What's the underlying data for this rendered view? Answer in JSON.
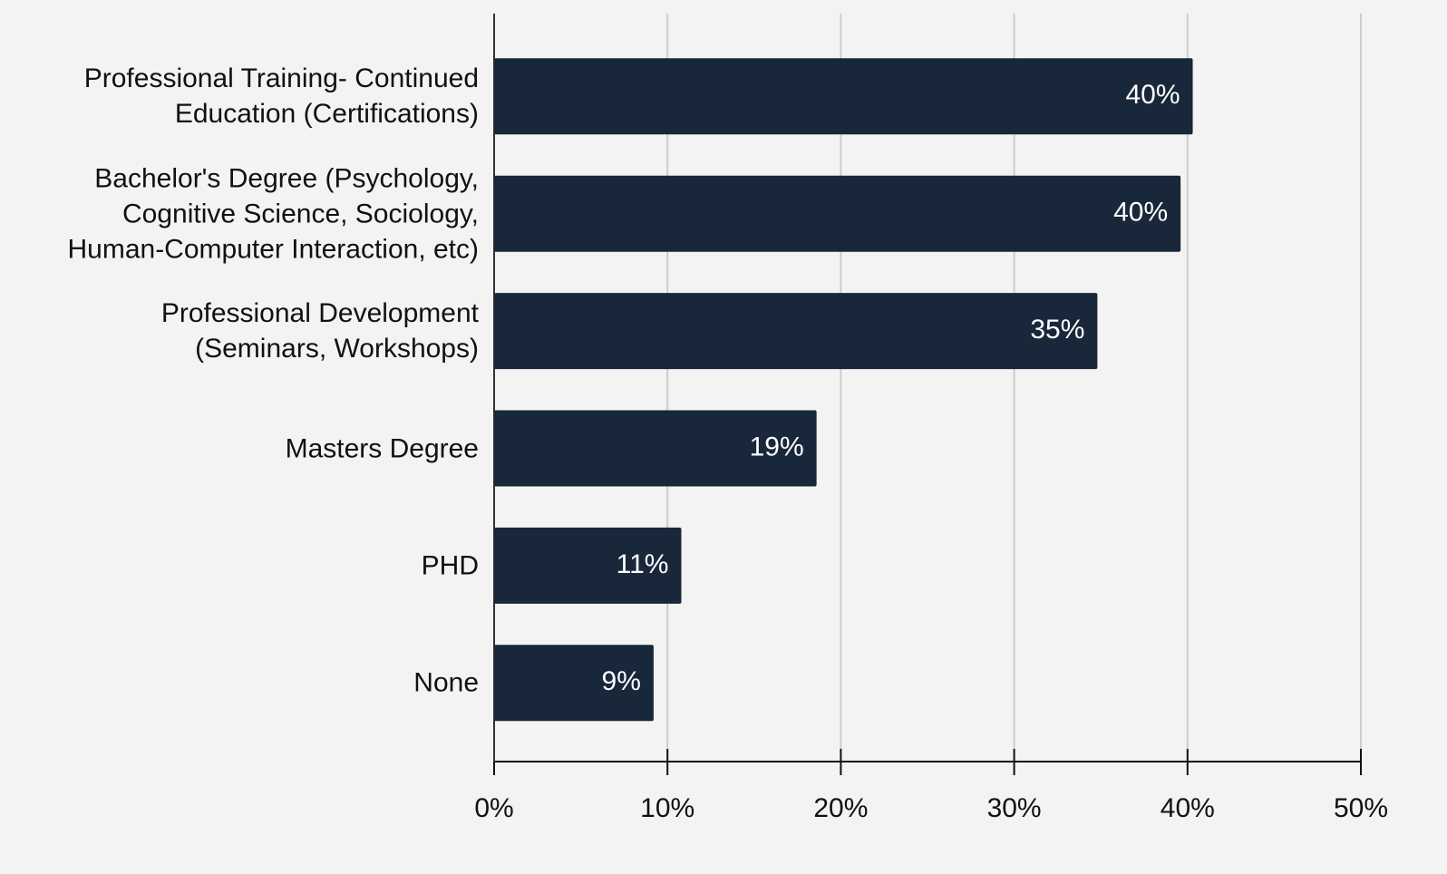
{
  "chart_data": {
    "type": "bar",
    "orientation": "horizontal",
    "categories": [
      "Professional Training- Continued\nEducation (Certifications)",
      "Bachelor's Degree (Psychology,\nCognitive Science, Sociology,\nHuman-Computer Interaction, etc)",
      "Professional Development\n(Seminars, Workshops)",
      "Masters Degree",
      "PHD",
      "None"
    ],
    "values": [
      40.3,
      39.6,
      34.8,
      18.6,
      10.8,
      9.2
    ],
    "value_labels": [
      "40%",
      "40%",
      "35%",
      "19%",
      "11%",
      "9%"
    ],
    "color": "#19273a",
    "xlim": [
      0,
      50
    ],
    "xticks": [
      {
        "value": 0,
        "label": "0%"
      },
      {
        "value": 10,
        "label": "10%"
      },
      {
        "value": 20,
        "label": "20%"
      },
      {
        "value": 30,
        "label": "30%"
      },
      {
        "value": 40,
        "label": "40%"
      },
      {
        "value": 50,
        "label": "50%"
      }
    ],
    "grid": true
  }
}
